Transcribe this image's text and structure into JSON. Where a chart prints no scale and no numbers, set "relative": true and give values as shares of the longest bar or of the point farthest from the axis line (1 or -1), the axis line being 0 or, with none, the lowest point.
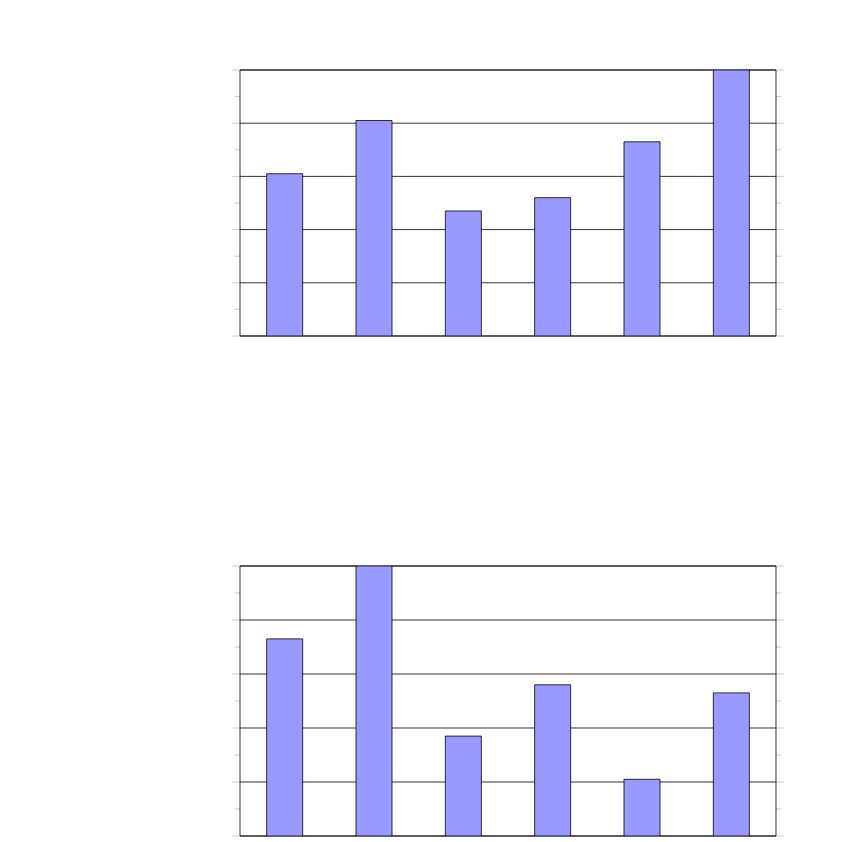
{
  "chart_data": [
    {
      "type": "bar",
      "relative": true,
      "categories": [
        null,
        null,
        null,
        null,
        null,
        null
      ],
      "values": [
        0.61,
        0.81,
        0.47,
        0.52,
        0.73,
        1
      ],
      "color": "#9999ff",
      "grid": "y"
    },
    {
      "type": "bar",
      "relative": true,
      "categories": [
        null,
        null,
        null,
        null,
        null,
        null
      ],
      "values": [
        0.73,
        1,
        0.37,
        0.56,
        0.21,
        0.53
      ],
      "color": "#9999ff",
      "grid": "y"
    }
  ]
}
